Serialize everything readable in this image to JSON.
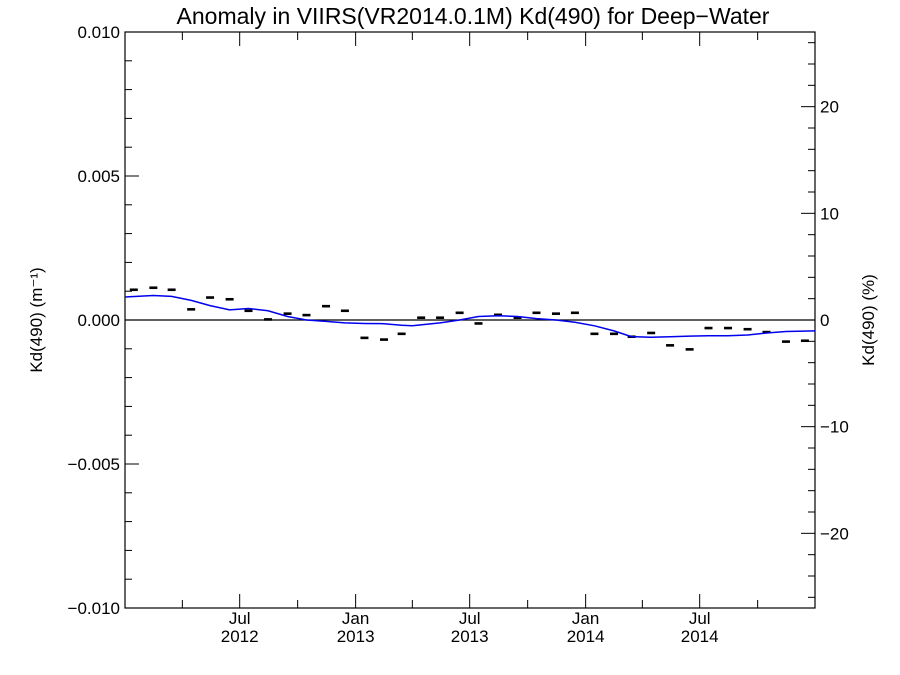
{
  "chart_data": {
    "type": "line",
    "title": "Anomaly in VIIRS(VR2014.0.1M) Kd(490) for Deep−Water",
    "ylabel_left": "Kd(490) (m⁻¹)",
    "ylabel_right": "Kd(490) (%)",
    "xlabel": "",
    "x_range": [
      "2012-01-01",
      "2014-12-31"
    ],
    "ylim_left": [
      -0.01,
      0.01
    ],
    "ylim_right": [
      -27,
      27
    ],
    "y_ticks_left": [
      {
        "value": 0.01,
        "label": "0.010"
      },
      {
        "value": 0.005,
        "label": "0.005"
      },
      {
        "value": 0.0,
        "label": "0.000"
      },
      {
        "value": -0.005,
        "label": "−0.005"
      },
      {
        "value": -0.01,
        "label": "−0.010"
      }
    ],
    "y_ticks_right": [
      {
        "value": 20,
        "label": "20"
      },
      {
        "value": 10,
        "label": "10"
      },
      {
        "value": 0,
        "label": "0"
      },
      {
        "value": -10,
        "label": "−10"
      },
      {
        "value": -20,
        "label": "−20"
      }
    ],
    "x_ticks": [
      {
        "date": "2012-07-01",
        "label1": "Jul",
        "label2": "2012"
      },
      {
        "date": "2013-01-01",
        "label1": "Jan",
        "label2": "2013"
      },
      {
        "date": "2013-07-01",
        "label1": "Jul",
        "label2": "2013"
      },
      {
        "date": "2014-01-01",
        "label1": "Jan",
        "label2": "2014"
      },
      {
        "date": "2014-07-01",
        "label1": "Jul",
        "label2": "2014"
      }
    ],
    "grid": false,
    "zero_line": true,
    "series": [
      {
        "kind": "monthly-markers",
        "color": "#000000",
        "points": [
          {
            "x": "2012-01-15",
            "y": 0.00105
          },
          {
            "x": "2012-02-15",
            "y": 0.00112
          },
          {
            "x": "2012-03-15",
            "y": 0.00105
          },
          {
            "x": "2012-04-15",
            "y": 0.00037
          },
          {
            "x": "2012-05-15",
            "y": 0.00078
          },
          {
            "x": "2012-06-15",
            "y": 0.00072
          },
          {
            "x": "2012-07-15",
            "y": 0.00032
          },
          {
            "x": "2012-08-15",
            "y": 2e-05
          },
          {
            "x": "2012-09-15",
            "y": 0.00022
          },
          {
            "x": "2012-10-15",
            "y": 0.00017
          },
          {
            "x": "2012-11-15",
            "y": 0.00048
          },
          {
            "x": "2012-12-15",
            "y": 0.00032
          },
          {
            "x": "2013-01-15",
            "y": -0.00062
          },
          {
            "x": "2013-02-15",
            "y": -0.00068
          },
          {
            "x": "2013-03-15",
            "y": -0.00048
          },
          {
            "x": "2013-04-15",
            "y": 8e-05
          },
          {
            "x": "2013-05-15",
            "y": 8e-05
          },
          {
            "x": "2013-06-15",
            "y": 0.00025
          },
          {
            "x": "2013-07-15",
            "y": -0.00012
          },
          {
            "x": "2013-08-15",
            "y": 0.00018
          },
          {
            "x": "2013-09-15",
            "y": 8e-05
          },
          {
            "x": "2013-10-15",
            "y": 0.00025
          },
          {
            "x": "2013-11-15",
            "y": 0.00022
          },
          {
            "x": "2013-12-15",
            "y": 0.00025
          },
          {
            "x": "2014-01-15",
            "y": -0.00048
          },
          {
            "x": "2014-02-15",
            "y": -0.00048
          },
          {
            "x": "2014-03-15",
            "y": -0.00058
          },
          {
            "x": "2014-04-15",
            "y": -0.00045
          },
          {
            "x": "2014-05-15",
            "y": -0.00088
          },
          {
            "x": "2014-06-15",
            "y": -0.00102
          },
          {
            "x": "2014-07-15",
            "y": -0.00028
          },
          {
            "x": "2014-08-15",
            "y": -0.00028
          },
          {
            "x": "2014-09-15",
            "y": -0.00032
          },
          {
            "x": "2014-10-15",
            "y": -0.00042
          },
          {
            "x": "2014-11-15",
            "y": -0.00075
          },
          {
            "x": "2014-12-15",
            "y": -0.00072
          }
        ]
      },
      {
        "kind": "smoothed-line",
        "color": "#0000ee",
        "points": [
          {
            "x": "2012-01-01",
            "y": 0.0008
          },
          {
            "x": "2012-02-15",
            "y": 0.00085
          },
          {
            "x": "2012-03-15",
            "y": 0.00082
          },
          {
            "x": "2012-04-15",
            "y": 0.00068
          },
          {
            "x": "2012-05-15",
            "y": 0.0005
          },
          {
            "x": "2012-06-15",
            "y": 0.00035
          },
          {
            "x": "2012-07-15",
            "y": 0.0004
          },
          {
            "x": "2012-08-15",
            "y": 0.00032
          },
          {
            "x": "2012-09-15",
            "y": 0.00012
          },
          {
            "x": "2012-10-15",
            "y": 0.0
          },
          {
            "x": "2012-11-15",
            "y": -5e-05
          },
          {
            "x": "2012-12-15",
            "y": -0.0001
          },
          {
            "x": "2013-01-15",
            "y": -0.00012
          },
          {
            "x": "2013-02-15",
            "y": -0.00013
          },
          {
            "x": "2013-03-15",
            "y": -0.00018
          },
          {
            "x": "2013-04-01",
            "y": -0.0002
          },
          {
            "x": "2013-05-15",
            "y": -0.0001
          },
          {
            "x": "2013-06-15",
            "y": 0.0
          },
          {
            "x": "2013-07-15",
            "y": 0.00012
          },
          {
            "x": "2013-08-15",
            "y": 0.00015
          },
          {
            "x": "2013-09-15",
            "y": 0.00012
          },
          {
            "x": "2013-10-15",
            "y": 5e-05
          },
          {
            "x": "2013-11-15",
            "y": 0.0
          },
          {
            "x": "2013-12-15",
            "y": -8e-05
          },
          {
            "x": "2014-01-15",
            "y": -0.0002
          },
          {
            "x": "2014-02-15",
            "y": -0.00038
          },
          {
            "x": "2014-03-15",
            "y": -0.00058
          },
          {
            "x": "2014-04-15",
            "y": -0.0006
          },
          {
            "x": "2014-05-15",
            "y": -0.00058
          },
          {
            "x": "2014-06-15",
            "y": -0.00056
          },
          {
            "x": "2014-07-15",
            "y": -0.00055
          },
          {
            "x": "2014-08-15",
            "y": -0.00055
          },
          {
            "x": "2014-09-15",
            "y": -0.00052
          },
          {
            "x": "2014-10-15",
            "y": -0.00045
          },
          {
            "x": "2014-11-15",
            "y": -0.0004
          },
          {
            "x": "2014-12-31",
            "y": -0.00038
          }
        ]
      }
    ]
  }
}
